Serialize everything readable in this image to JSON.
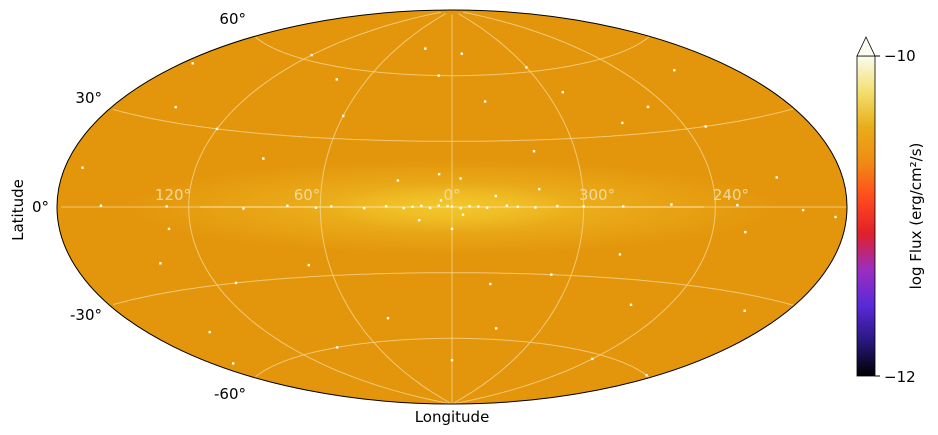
{
  "map": {
    "projection": "aitoff",
    "background_color": "#e3950b",
    "plane_glow_color": "#f2c52a",
    "grid_color": "#f4d28a",
    "xlabel": "Longitude",
    "ylabel": "Latitude",
    "lon_ticks": [
      "120°",
      "60°",
      "0°",
      "300°",
      "240°"
    ],
    "lat_ticks": [
      "60°",
      "30°",
      "0°",
      "-30°",
      "-60°"
    ],
    "point_sources": [
      [
        0,
        0.2
      ],
      [
        2,
        0.4
      ],
      [
        -4,
        -0.5
      ],
      [
        6,
        0.6
      ],
      [
        -8,
        0.3
      ],
      [
        10,
        -0.4
      ],
      [
        -12,
        0.2
      ],
      [
        14,
        0.5
      ],
      [
        -16,
        -0.3
      ],
      [
        18,
        0.1
      ],
      [
        22,
        -0.5
      ],
      [
        -25,
        0.6
      ],
      [
        -30,
        0.1
      ],
      [
        -38,
        -0.2
      ],
      [
        30,
        0.3
      ],
      [
        40,
        -0.5
      ],
      [
        -48,
        0.4
      ],
      [
        55,
        0.2
      ],
      [
        -60,
        0.2
      ],
      [
        62,
        -0.3
      ],
      [
        75,
        0.5
      ],
      [
        -78,
        0.2
      ],
      [
        -100,
        1.0
      ],
      [
        95,
        -0.6
      ],
      [
        -130,
        0.7
      ],
      [
        130,
        0.2
      ],
      [
        -160,
        -1.0
      ],
      [
        160,
        0.4
      ],
      [
        5,
        3.0
      ],
      [
        -5,
        -3.5
      ],
      [
        -20,
        5
      ],
      [
        15,
        -6
      ],
      [
        -4,
        13
      ],
      [
        6,
        15
      ],
      [
        0,
        -10
      ],
      [
        -40,
        8
      ],
      [
        25,
        12
      ],
      [
        -150,
        10
      ],
      [
        172,
        12
      ],
      [
        130,
        -8
      ],
      [
        -135,
        -9
      ],
      [
        -175,
        -3
      ],
      [
        -40,
        25
      ],
      [
        120,
        30
      ],
      [
        -90,
        35
      ],
      [
        60,
        40
      ],
      [
        -110,
        40
      ],
      [
        150,
        35
      ],
      [
        -20,
        48
      ],
      [
        80,
        55
      ],
      [
        10,
        60
      ],
      [
        -60,
        62
      ],
      [
        120,
        62
      ],
      [
        -150,
        50
      ],
      [
        175,
        48
      ],
      [
        -130,
        30
      ],
      [
        -70,
        50
      ],
      [
        90,
        20
      ],
      [
        -10,
        70
      ],
      [
        30,
        72
      ],
      [
        -50,
        -30
      ],
      [
        110,
        -30
      ],
      [
        -100,
        -40
      ],
      [
        150,
        -45
      ],
      [
        40,
        -50
      ],
      [
        -160,
        -35
      ],
      [
        -30,
        -55
      ],
      [
        90,
        -60
      ],
      [
        -120,
        -62
      ],
      [
        0,
        -70
      ],
      [
        70,
        -25
      ],
      [
        -80,
        -20
      ],
      [
        140,
        -20
      ],
      [
        -20,
        -35
      ],
      [
        170,
        -55
      ],
      [
        -175,
        -60
      ]
    ]
  },
  "colorbar": {
    "label": "log Flux (erg/cm²/s)",
    "max_label": "−10",
    "min_label": "−12",
    "vmin": -12,
    "vmax": -10,
    "extend": "max",
    "stops": [
      "#000000",
      "#2a1780",
      "#5a2ad8",
      "#9b2ec0",
      "#e0202a",
      "#ff4a1e",
      "#f08a14",
      "#e8ad1a",
      "#f3e070",
      "#fbfbf0"
    ]
  }
}
